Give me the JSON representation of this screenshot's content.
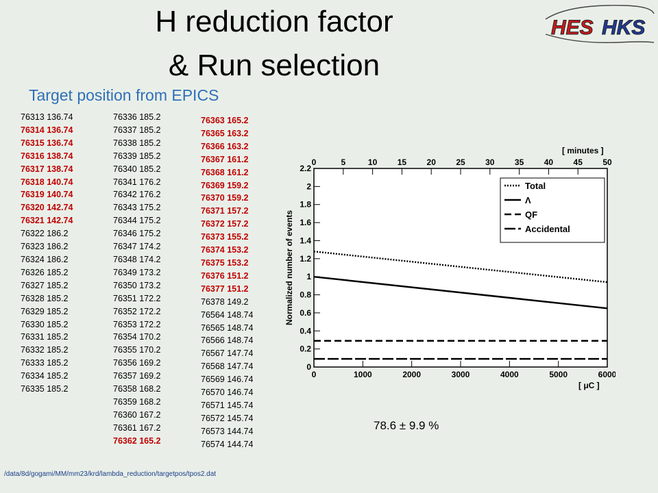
{
  "title_line1": "H reduction factor",
  "title_line2": "& Run selection",
  "subtitle": "Target position from EPICS",
  "logo": {
    "part1": "HES",
    "part2": "HKS"
  },
  "runs": [
    [
      {
        "text": "76313 136.74",
        "red": false
      },
      {
        "text": "76314 136.74",
        "red": true
      },
      {
        "text": "76315 136.74",
        "red": true
      },
      {
        "text": "76316 138.74",
        "red": true
      },
      {
        "text": "76317 138.74",
        "red": true
      },
      {
        "text": "76318 140.74",
        "red": true
      },
      {
        "text": "76319 140.74",
        "red": true
      },
      {
        "text": "76320 142.74",
        "red": true
      },
      {
        "text": "76321 142.74",
        "red": true
      },
      {
        "text": "76322 186.2",
        "red": false
      },
      {
        "text": "76323 186.2",
        "red": false
      },
      {
        "text": "76324 186.2",
        "red": false
      },
      {
        "text": "76326 185.2",
        "red": false
      },
      {
        "text": "76327 185.2",
        "red": false
      },
      {
        "text": "76328 185.2",
        "red": false
      },
      {
        "text": "76329 185.2",
        "red": false
      },
      {
        "text": "76330 185.2",
        "red": false
      },
      {
        "text": "76331 185.2",
        "red": false
      },
      {
        "text": "76332 185.2",
        "red": false
      },
      {
        "text": "76333 185.2",
        "red": false
      },
      {
        "text": "76334 185.2",
        "red": false
      },
      {
        "text": "76335 185.2",
        "red": false
      }
    ],
    [
      {
        "text": "76336 185.2",
        "red": false
      },
      {
        "text": "76337 185.2",
        "red": false
      },
      {
        "text": "76338 185.2",
        "red": false
      },
      {
        "text": "76339 185.2",
        "red": false
      },
      {
        "text": "76340 185.2",
        "red": false
      },
      {
        "text": "76341 176.2",
        "red": false
      },
      {
        "text": "76342 176.2",
        "red": false
      },
      {
        "text": "76343 175.2",
        "red": false
      },
      {
        "text": "76344 175.2",
        "red": false
      },
      {
        "text": "76346 175.2",
        "red": false
      },
      {
        "text": "76347 174.2",
        "red": false
      },
      {
        "text": "76348 174.2",
        "red": false
      },
      {
        "text": "76349 173.2",
        "red": false
      },
      {
        "text": "76350 173.2",
        "red": false
      },
      {
        "text": "76351 172.2",
        "red": false
      },
      {
        "text": "76352 172.2",
        "red": false
      },
      {
        "text": "76353 172.2",
        "red": false
      },
      {
        "text": "76354 170.2",
        "red": false
      },
      {
        "text": "76355 170.2",
        "red": false
      },
      {
        "text": "76356 169.2",
        "red": false
      },
      {
        "text": "76357 169.2",
        "red": false
      },
      {
        "text": "76358 168.2",
        "red": false
      },
      {
        "text": "76359 168.2",
        "red": false
      },
      {
        "text": "76360 167.2",
        "red": false
      },
      {
        "text": "76361 167.2",
        "red": false
      },
      {
        "text": "76362 165.2",
        "red": true
      }
    ],
    [
      {
        "text": "76363 165.2",
        "red": true
      },
      {
        "text": "76365 163.2",
        "red": true
      },
      {
        "text": "76366 163.2",
        "red": true
      },
      {
        "text": "76367 161.2",
        "red": true
      },
      {
        "text": "76368 161.2",
        "red": true
      },
      {
        "text": "76369 159.2",
        "red": true
      },
      {
        "text": "76370 159.2",
        "red": true
      },
      {
        "text": "76371 157.2",
        "red": true
      },
      {
        "text": "76372 157.2",
        "red": true
      },
      {
        "text": "76373 155.2",
        "red": true
      },
      {
        "text": "76374 153.2",
        "red": true
      },
      {
        "text": "76375 153.2",
        "red": true
      },
      {
        "text": "76376 151.2",
        "red": true
      },
      {
        "text": "76377 151.2",
        "red": true
      },
      {
        "text": "76378 149.2",
        "red": false
      },
      {
        "text": "76564 148.74",
        "red": false
      },
      {
        "text": "76565 148.74",
        "red": false
      },
      {
        "text": "76566 148.74",
        "red": false
      },
      {
        "text": "76567 147.74",
        "red": false
      },
      {
        "text": "76568 147.74",
        "red": false
      },
      {
        "text": "76569 146.74",
        "red": false
      },
      {
        "text": "76570 146.74",
        "red": false
      },
      {
        "text": "76571 145.74",
        "red": false
      },
      {
        "text": "76572 145.74",
        "red": false
      },
      {
        "text": "76573 144.74",
        "red": false
      },
      {
        "text": "76574 144.74",
        "red": false
      }
    ]
  ],
  "result": "78.6 ± 9.9 %",
  "path": "/data/8d/gogami/MM/mm23/krd/lambda_reduction/targetpos/tpos2.dat",
  "colors": {
    "red_run": "#c00000",
    "subtitle": "#2f6fb8",
    "path": "#1a3f8a"
  },
  "chart_data": {
    "type": "line",
    "xlabel": "[ μC ]",
    "ylabel": "Normalized number of events",
    "top_axis_label": "[ minutes ]",
    "xlim": [
      0,
      6000
    ],
    "ylim": [
      0,
      2.2
    ],
    "top_xlim": [
      0,
      50
    ],
    "x_ticks": [
      0,
      1000,
      2000,
      3000,
      4000,
      5000,
      6000
    ],
    "y_ticks": [
      0,
      0.2,
      0.4,
      0.6,
      0.8,
      1,
      1.2,
      1.4,
      1.6,
      1.8,
      2,
      2.2
    ],
    "top_ticks": [
      0,
      5,
      10,
      15,
      20,
      25,
      30,
      35,
      40,
      45,
      50
    ],
    "legend_position": "top-right",
    "series": [
      {
        "name": "Total",
        "style": "dotted",
        "x": [
          0,
          6000
        ],
        "y": [
          1.28,
          0.94
        ]
      },
      {
        "name": "Λ",
        "style": "solid",
        "x": [
          0,
          6000
        ],
        "y": [
          1.0,
          0.65
        ]
      },
      {
        "name": "QF",
        "style": "dashed",
        "x": [
          0,
          6000
        ],
        "y": [
          0.29,
          0.29
        ]
      },
      {
        "name": "Accidental",
        "style": "longdash",
        "x": [
          0,
          6000
        ],
        "y": [
          0.09,
          0.09
        ]
      }
    ]
  }
}
